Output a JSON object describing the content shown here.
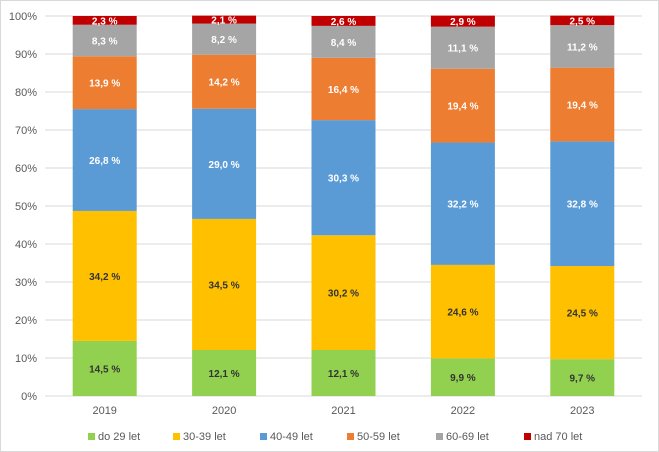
{
  "chart_data": {
    "type": "bar",
    "stacked": true,
    "percent": true,
    "categories": [
      "2019",
      "2020",
      "2021",
      "2022",
      "2023"
    ],
    "series": [
      {
        "name": "do 29 let",
        "color": "#92d050",
        "label_color": "#333333",
        "values": [
          14.5,
          12.1,
          12.1,
          9.9,
          9.7
        ],
        "labels": [
          "14,5 %",
          "12,1 %",
          "12,1 %",
          "9,9 %",
          "9,7 %"
        ]
      },
      {
        "name": "30-39 let",
        "color": "#ffc000",
        "label_color": "#333333",
        "values": [
          34.2,
          34.5,
          30.2,
          24.6,
          24.5
        ],
        "labels": [
          "34,2 %",
          "34,5 %",
          "30,2 %",
          "24,6 %",
          "24,5 %"
        ]
      },
      {
        "name": "40-49 let",
        "color": "#5b9bd5",
        "label_color": "#ffffff",
        "values": [
          26.8,
          29.0,
          30.3,
          32.2,
          32.8
        ],
        "labels": [
          "26,8 %",
          "29,0 %",
          "30,3 %",
          "32,2 %",
          "32,8 %"
        ]
      },
      {
        "name": "50-59 let",
        "color": "#ed7d31",
        "label_color": "#ffffff",
        "values": [
          13.9,
          14.2,
          16.4,
          19.4,
          19.4
        ],
        "labels": [
          "13,9 %",
          "14,2 %",
          "16,4 %",
          "19,4 %",
          "19,4 %"
        ]
      },
      {
        "name": "60-69 let",
        "color": "#a5a5a5",
        "label_color": "#ffffff",
        "values": [
          8.3,
          8.2,
          8.4,
          11.1,
          11.2
        ],
        "labels": [
          "8,3 %",
          "8,2 %",
          "8,4 %",
          "11,1 %",
          "11,2 %"
        ]
      },
      {
        "name": "nad 70 let",
        "color": "#c00000",
        "label_color": "#ffffff",
        "values": [
          2.3,
          2.1,
          2.6,
          2.9,
          2.5
        ],
        "labels": [
          "2,3 %",
          "2,1 %",
          "2,6 %",
          "2,9 %",
          "2,5 %"
        ]
      }
    ],
    "y_ticks": [
      "0%",
      "10%",
      "20%",
      "30%",
      "40%",
      "50%",
      "60%",
      "70%",
      "80%",
      "90%",
      "100%"
    ],
    "ylim": [
      0,
      100
    ],
    "grid": true,
    "legend": "bottom",
    "title": "",
    "xlabel": "",
    "ylabel": ""
  }
}
